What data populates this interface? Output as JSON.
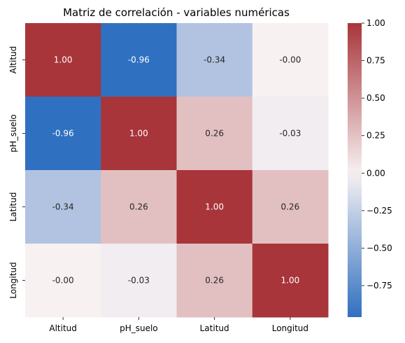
{
  "chart_data": {
    "type": "heatmap",
    "title": "Matriz de correlación - variables numéricas",
    "x_labels": [
      "Altitud",
      "pH_suelo",
      "Latitud",
      "Longitud"
    ],
    "y_labels": [
      "Altitud",
      "pH_suelo",
      "Latitud",
      "Longitud"
    ],
    "values": [
      [
        1.0,
        -0.96,
        -0.34,
        -0.0
      ],
      [
        -0.96,
        1.0,
        0.26,
        -0.03
      ],
      [
        -0.34,
        0.26,
        1.0,
        0.26
      ],
      [
        -0.0,
        -0.03,
        0.26,
        1.0
      ]
    ],
    "cell_labels": [
      [
        "1.00",
        "-0.96",
        "-0.34",
        "-0.00"
      ],
      [
        "-0.96",
        "1.00",
        "0.26",
        "-0.03"
      ],
      [
        "-0.34",
        "0.26",
        "1.00",
        "0.26"
      ],
      [
        "-0.00",
        "-0.03",
        "0.26",
        "1.00"
      ]
    ],
    "color_range": [
      -0.96,
      1.0
    ],
    "colormap": "vlag",
    "colorbar_ticks": [
      1.0,
      0.75,
      0.5,
      0.25,
      0.0,
      -0.25,
      -0.5,
      -0.75
    ],
    "colorbar_tick_labels": [
      "1.00",
      "0.75",
      "0.50",
      "0.25",
      "0.00",
      "−0.25",
      "−0.50",
      "−0.75"
    ],
    "colors": {
      "negative": "#3070c0",
      "neutral": "#f7f1f2",
      "positive": "#a8353a"
    }
  }
}
